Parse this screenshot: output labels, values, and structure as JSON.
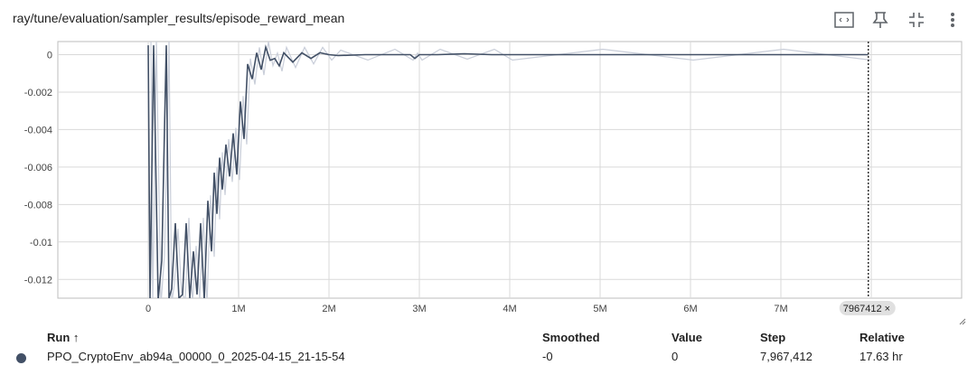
{
  "header": {
    "title": "ray/tune/evaluation/sampler_results/episode_reward_mean",
    "toolbar": [
      {
        "name": "fit-domain-button",
        "icon": "fit-domain-icon"
      },
      {
        "name": "pin-button",
        "icon": "pin-icon"
      },
      {
        "name": "collapse-button",
        "icon": "collapse-icon"
      },
      {
        "name": "more-menu-button",
        "icon": "more-vert-icon"
      }
    ]
  },
  "chart_data": {
    "type": "line",
    "xlim": [
      -1000000,
      9000000
    ],
    "ylim": [
      -0.013,
      0.0007
    ],
    "x_ticks": [
      0,
      1000000,
      2000000,
      3000000,
      4000000,
      5000000,
      6000000,
      7000000,
      8000000
    ],
    "x_tick_labels": [
      "0",
      "1M",
      "2M",
      "3M",
      "4M",
      "5M",
      "6M",
      "7M",
      ""
    ],
    "y_ticks": [
      0,
      -0.002,
      -0.004,
      -0.006,
      -0.008,
      -0.01,
      -0.012
    ],
    "y_tick_labels": [
      "0",
      "-0.002",
      "-0.004",
      "-0.006",
      "-0.008",
      "-0.01",
      "-0.012"
    ],
    "grid": true,
    "series": [
      {
        "color": "#425066",
        "raw_color": "#c9ced9",
        "x": [
          0,
          20000,
          60000,
          110000,
          150000,
          180000,
          200000,
          230000,
          260000,
          300000,
          340000,
          380000,
          420000,
          460000,
          500000,
          540000,
          580000,
          620000,
          660000,
          700000,
          730000,
          760000,
          790000,
          820000,
          860000,
          900000,
          940000,
          980000,
          1020000,
          1060000,
          1100000,
          1150000,
          1200000,
          1250000,
          1300000,
          1350000,
          1400000,
          1450000,
          1500000,
          1600000,
          1700000,
          1800000,
          1900000,
          2000000,
          2100000,
          2400000,
          2700000,
          2900000,
          2950000,
          3000000,
          3200000,
          3500000,
          3800000,
          4000000,
          5000000,
          6000000,
          7000000,
          7967412
        ],
        "y": [
          0.0005,
          -0.0131,
          0.0005,
          -0.0131,
          -0.011,
          -0.004,
          0.0005,
          -0.013,
          -0.0125,
          -0.009,
          -0.013,
          -0.0128,
          -0.009,
          -0.013,
          -0.0105,
          -0.0128,
          -0.009,
          -0.0131,
          -0.0078,
          -0.0105,
          -0.0063,
          -0.0085,
          -0.0055,
          -0.0072,
          -0.0048,
          -0.0065,
          -0.0042,
          -0.0064,
          -0.0025,
          -0.0045,
          -0.0005,
          -0.0013,
          0.0001,
          -0.0008,
          0.0004,
          -0.0003,
          -0.0002,
          -0.0006,
          0.0001,
          -0.0004,
          0.0001,
          -0.0002,
          0.0001,
          0.0,
          -5e-05,
          0.0,
          0.0,
          0.0,
          -0.0002,
          0.0,
          0.0,
          5e-05,
          0.0,
          0.0,
          0.0,
          0.0,
          0.0,
          0.0
        ]
      }
    ],
    "hover_step": 7967412,
    "hover_step_label": "7967412 ×"
  },
  "table": {
    "headers": {
      "run": "Run ↑",
      "smoothed": "Smoothed",
      "value": "Value",
      "step": "Step",
      "relative": "Relative"
    },
    "rows": [
      {
        "run": "PPO_CryptoEnv_ab94a_00000_0_2025-04-15_21-15-54",
        "smoothed": "-0",
        "value": "0",
        "step": "7,967,412",
        "relative": "17.63 hr",
        "color": "#425066"
      }
    ]
  }
}
